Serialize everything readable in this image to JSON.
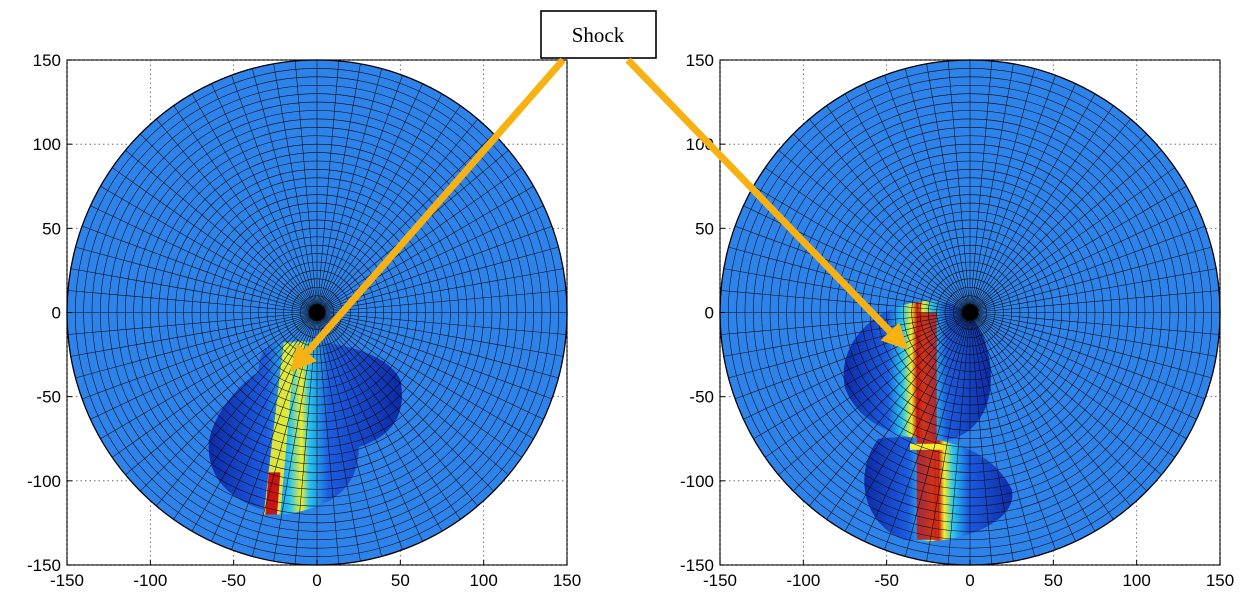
{
  "annotation": {
    "label": "Shock"
  },
  "colors": {
    "disk_fill": "#2e83ea",
    "mesh_line": "#0a0a0a",
    "arrow": "#f7b112",
    "shock_colormap": [
      "#0a1a9a",
      "#1f64e6",
      "#26c8f0",
      "#f6f02a",
      "#f08a1a",
      "#c81414",
      "#7a0a0a"
    ]
  },
  "chart_data": [
    {
      "type": "heatmap",
      "projection": "polar-mesh",
      "grid": "dotted",
      "xlim": [
        -150,
        150
      ],
      "ylim": [
        -150,
        150
      ],
      "x_ticks": [
        "-150",
        "-100",
        "-50",
        "0",
        "50",
        "100",
        "150"
      ],
      "y_ticks": [
        "150",
        "100",
        "50",
        "0",
        "-50",
        "-100",
        "-150"
      ],
      "disk_radius": 150,
      "shock_band": {
        "x_start": [
          -15,
          -20
        ],
        "x_end": [
          -30,
          -120
        ]
      }
    },
    {
      "type": "heatmap",
      "projection": "polar-mesh",
      "grid": "dotted",
      "xlim": [
        -150,
        150
      ],
      "ylim": [
        -150,
        150
      ],
      "x_ticks": [
        "-150",
        "-100",
        "-50",
        "0",
        "50",
        "100",
        "150"
      ],
      "y_ticks": [
        "150",
        "100",
        "50",
        "0",
        "-50",
        "-100",
        "-150"
      ],
      "disk_radius": 150,
      "shock_band": {
        "x_start": [
          -25,
          0
        ],
        "x_end": [
          -25,
          -135
        ]
      }
    }
  ]
}
